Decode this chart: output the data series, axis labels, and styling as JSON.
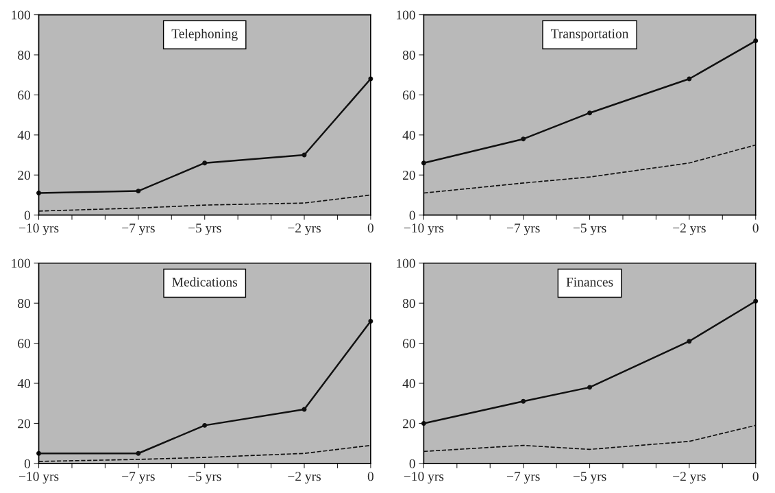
{
  "chart_data": [
    {
      "type": "line",
      "title": "Telephoning",
      "x": [
        -10,
        -7,
        -5,
        -2,
        0
      ],
      "xlim": [
        -10,
        0
      ],
      "ylim": [
        0,
        100
      ],
      "xticks": [
        {
          "value": -10,
          "label": "−10 yrs"
        },
        {
          "value": -9,
          "label": null
        },
        {
          "value": -8,
          "label": null
        },
        {
          "value": -7,
          "label": "−7 yrs"
        },
        {
          "value": -6,
          "label": null
        },
        {
          "value": -5,
          "label": "−5 yrs"
        },
        {
          "value": -4,
          "label": null
        },
        {
          "value": -3,
          "label": null
        },
        {
          "value": -2,
          "label": "−2 yrs"
        },
        {
          "value": -1,
          "label": null
        },
        0
      ],
      "yticks": [
        0,
        20,
        40,
        60,
        80,
        100
      ],
      "grid": false,
      "legend": false,
      "series": [
        {
          "color": "#111111",
          "line_style": "solid",
          "marker": "circle",
          "values": [
            11,
            12,
            26,
            30,
            68
          ]
        },
        {
          "color": "#111111",
          "line_style": "dashed",
          "marker": "none",
          "values": [
            2,
            3.5,
            5,
            6,
            10
          ]
        }
      ]
    },
    {
      "type": "line",
      "title": "Transportation",
      "x": [
        -10,
        -7,
        -5,
        -2,
        0
      ],
      "xlim": [
        -10,
        0
      ],
      "ylim": [
        0,
        100
      ],
      "xticks": [
        {
          "value": -10,
          "label": "−10 yrs"
        },
        {
          "value": -9,
          "label": null
        },
        {
          "value": -8,
          "label": null
        },
        {
          "value": -7,
          "label": "−7 yrs"
        },
        {
          "value": -6,
          "label": null
        },
        {
          "value": -5,
          "label": "−5 yrs"
        },
        {
          "value": -4,
          "label": null
        },
        {
          "value": -3,
          "label": null
        },
        {
          "value": -2,
          "label": "−2 yrs"
        },
        {
          "value": -1,
          "label": null
        },
        0
      ],
      "yticks": [
        0,
        20,
        40,
        60,
        80,
        100
      ],
      "grid": false,
      "legend": false,
      "series": [
        {
          "color": "#111111",
          "line_style": "solid",
          "marker": "circle",
          "values": [
            26,
            38,
            51,
            68,
            87
          ]
        },
        {
          "color": "#111111",
          "line_style": "dashed",
          "marker": "none",
          "values": [
            11,
            16,
            19,
            26,
            35
          ]
        }
      ]
    },
    {
      "type": "line",
      "title": "Medications",
      "x": [
        -10,
        -7,
        -5,
        -2,
        0
      ],
      "xlim": [
        -10,
        0
      ],
      "ylim": [
        0,
        100
      ],
      "xticks": [
        {
          "value": -10,
          "label": "−10 yrs"
        },
        {
          "value": -9,
          "label": null
        },
        {
          "value": -8,
          "label": null
        },
        {
          "value": -7,
          "label": "−7 yrs"
        },
        {
          "value": -6,
          "label": null
        },
        {
          "value": -5,
          "label": "−5 yrs"
        },
        {
          "value": -4,
          "label": null
        },
        {
          "value": -3,
          "label": null
        },
        {
          "value": -2,
          "label": "−2 yrs"
        },
        {
          "value": -1,
          "label": null
        },
        0
      ],
      "yticks": [
        0,
        20,
        40,
        60,
        80,
        100
      ],
      "grid": false,
      "legend": false,
      "series": [
        {
          "color": "#111111",
          "line_style": "solid",
          "marker": "circle",
          "values": [
            5,
            5,
            19,
            27,
            71
          ]
        },
        {
          "color": "#111111",
          "line_style": "dashed",
          "marker": "none",
          "values": [
            1,
            2,
            3,
            5,
            9
          ]
        }
      ]
    },
    {
      "type": "line",
      "title": "Finances",
      "x": [
        -10,
        -7,
        -5,
        -2,
        0
      ],
      "xlim": [
        -10,
        0
      ],
      "ylim": [
        0,
        100
      ],
      "xticks": [
        {
          "value": -10,
          "label": "−10 yrs"
        },
        {
          "value": -9,
          "label": null
        },
        {
          "value": -8,
          "label": null
        },
        {
          "value": -7,
          "label": "−7 yrs"
        },
        {
          "value": -6,
          "label": null
        },
        {
          "value": -5,
          "label": "−5 yrs"
        },
        {
          "value": -4,
          "label": null
        },
        {
          "value": -3,
          "label": null
        },
        {
          "value": -2,
          "label": "−2 yrs"
        },
        {
          "value": -1,
          "label": null
        },
        0
      ],
      "yticks": [
        0,
        20,
        40,
        60,
        80,
        100
      ],
      "grid": false,
      "legend": false,
      "series": [
        {
          "color": "#111111",
          "line_style": "solid",
          "marker": "circle",
          "values": [
            20,
            31,
            38,
            61,
            81
          ]
        },
        {
          "color": "#111111",
          "line_style": "dashed",
          "marker": "none",
          "values": [
            6,
            9,
            7,
            11,
            19
          ]
        }
      ]
    }
  ]
}
